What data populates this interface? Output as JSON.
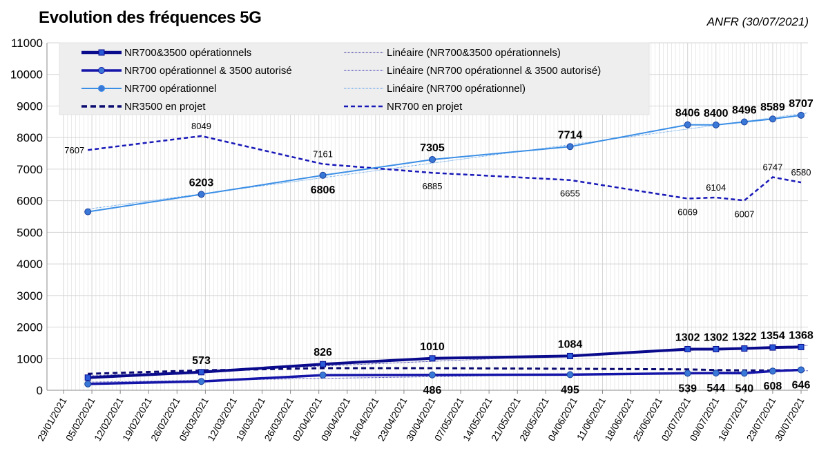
{
  "title": "Evolution des fréquences 5G",
  "source": "ANFR (30/07/2021)",
  "chart_data": {
    "type": "line",
    "x_labels": [
      "29/01/2021",
      "05/02/2021",
      "12/02/2021",
      "19/02/2021",
      "26/02/2021",
      "05/03/2021",
      "12/03/2021",
      "19/03/2021",
      "26/03/2021",
      "02/04/2021",
      "09/04/2021",
      "16/04/2021",
      "23/04/2021",
      "30/04/2021",
      "07/05/2021",
      "14/05/2021",
      "21/05/2021",
      "28/05/2021",
      "04/06/2021",
      "11/06/2021",
      "18/06/2021",
      "25/06/2021",
      "02/07/2021",
      "09/07/2021",
      "16/07/2021",
      "23/07/2021",
      "30/07/2021"
    ],
    "ylim": [
      0,
      11000
    ],
    "yticks": [
      0,
      1000,
      2000,
      3000,
      4000,
      5000,
      6000,
      7000,
      8000,
      9000,
      10000,
      11000
    ],
    "grid": true,
    "legend_position": "top-left",
    "colors": {
      "nr700_3500": "#0a0a8c",
      "nr700_op_3500_aut": "#1414a8",
      "nr700_op": "#3a8ee6",
      "nr3500_projet": "#0a0a70",
      "nr700_projet": "#1818b8",
      "grid": "#d4d4d4",
      "legend_bg": "#eeeeee"
    },
    "series": [
      {
        "key": "nr700_3500",
        "name": "NR700&3500 opérationnels",
        "trend_name": "Linéaire (NR700&3500 opérationnels)",
        "x": [
          "04/02/2021",
          "04/03/2021",
          "03/04/2021",
          "30/04/2021",
          "03/06/2021",
          "02/07/2021",
          "09/07/2021",
          "16/07/2021",
          "23/07/2021",
          "30/07/2021"
        ],
        "values": [
          400,
          573,
          826,
          1010,
          1084,
          1302,
          1302,
          1322,
          1354,
          1368
        ],
        "labels": [
          "",
          "573",
          "826",
          "1010",
          "1084",
          "1302",
          "1302",
          "1322",
          "1354",
          "1368"
        ]
      },
      {
        "key": "nr700_op_3500_aut",
        "name": "NR700 opérationnel & 3500 autorisé",
        "trend_name": "Linéaire (NR700 opérationnel & 3500 autorisé)",
        "x": [
          "04/02/2021",
          "04/03/2021",
          "03/04/2021",
          "30/04/2021",
          "03/06/2021",
          "02/07/2021",
          "09/07/2021",
          "16/07/2021",
          "23/07/2021",
          "30/07/2021"
        ],
        "values": [
          200,
          280,
          480,
          486,
          495,
          539,
          544,
          540,
          608,
          646
        ],
        "labels": [
          "",
          "",
          "",
          "486",
          "495",
          "539",
          "544",
          "540",
          "608",
          "646"
        ]
      },
      {
        "key": "nr700_op",
        "name": "NR700 opérationnel",
        "trend_name": "Linéaire (NR700 opérationnel)",
        "x": [
          "04/02/2021",
          "04/03/2021",
          "03/04/2021",
          "30/04/2021",
          "03/06/2021",
          "02/07/2021",
          "09/07/2021",
          "16/07/2021",
          "23/07/2021",
          "30/07/2021"
        ],
        "values": [
          5650,
          6203,
          6806,
          7305,
          7714,
          8406,
          8400,
          8496,
          8589,
          8707
        ],
        "labels": [
          "",
          "6203",
          "6806",
          "7305",
          "7714",
          "8406",
          "8400",
          "8496",
          "8589",
          "8707"
        ]
      },
      {
        "key": "nr3500_projet",
        "name": "NR3500 en projet",
        "x": [
          "04/02/2021",
          "04/03/2021",
          "03/04/2021",
          "30/04/2021",
          "03/06/2021",
          "02/07/2021",
          "09/07/2021",
          "16/07/2021",
          "23/07/2021",
          "30/07/2021"
        ],
        "values": [
          520,
          630,
          700,
          700,
          680,
          660,
          640,
          630,
          630,
          640
        ]
      },
      {
        "key": "nr700_projet",
        "name": "NR700 en projet",
        "x": [
          "04/02/2021",
          "04/03/2021",
          "03/04/2021",
          "30/04/2021",
          "03/06/2021",
          "02/07/2021",
          "09/07/2021",
          "16/07/2021",
          "23/07/2021",
          "30/07/2021"
        ],
        "values": [
          7607,
          8049,
          7161,
          6885,
          6655,
          6069,
          6104,
          6007,
          6747,
          6580
        ],
        "labels": [
          "7607",
          "8049",
          "7161",
          "6885",
          "6655",
          "6069",
          "6104",
          "6007",
          "6747",
          "6580"
        ]
      }
    ]
  }
}
